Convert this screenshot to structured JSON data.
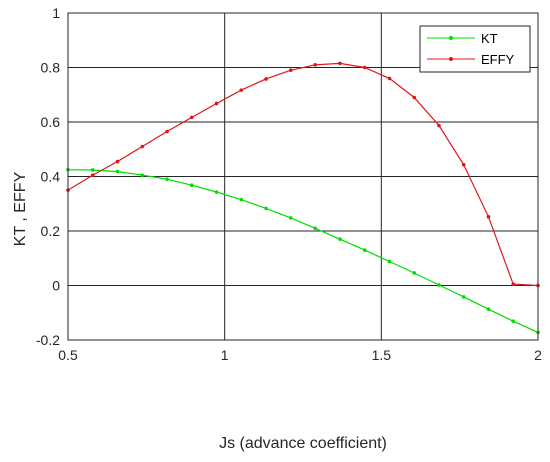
{
  "chart_data": {
    "type": "line",
    "title": "",
    "xlabel": "Js (advance coefficient)",
    "ylabel": "KT , EFFY",
    "xlim": [
      0.5,
      2
    ],
    "ylim": [
      -0.2,
      1
    ],
    "xticks": [
      0.5,
      1,
      1.5,
      2
    ],
    "xtick_labels": [
      "0.5",
      "1",
      "1.5",
      "2"
    ],
    "yticks": [
      -0.2,
      0,
      0.2,
      0.4,
      0.6,
      0.8,
      1
    ],
    "ytick_labels": [
      "-0.2",
      "0",
      "0.2",
      "0.4",
      "0.6",
      "0.8",
      "1"
    ],
    "grid": true,
    "legend_position": "top-right",
    "series": [
      {
        "name": "KT",
        "color": "#00dd00",
        "x": [
          0.5,
          0.579,
          0.658,
          0.737,
          0.816,
          0.895,
          0.974,
          1.053,
          1.132,
          1.211,
          1.289,
          1.368,
          1.447,
          1.526,
          1.605,
          1.684,
          1.763,
          1.842,
          1.921,
          2.0
        ],
        "y": [
          0.425,
          0.424,
          0.418,
          0.405,
          0.39,
          0.368,
          0.343,
          0.315,
          0.283,
          0.248,
          0.21,
          0.17,
          0.13,
          0.088,
          0.046,
          0.002,
          -0.042,
          -0.087,
          -0.131,
          -0.172
        ]
      },
      {
        "name": "EFFY",
        "color": "#e0151b",
        "x": [
          0.5,
          0.579,
          0.658,
          0.737,
          0.816,
          0.895,
          0.974,
          1.053,
          1.132,
          1.211,
          1.289,
          1.368,
          1.447,
          1.526,
          1.605,
          1.684,
          1.763,
          1.842,
          1.921,
          2.0
        ],
        "y": [
          0.35,
          0.405,
          0.455,
          0.51,
          0.565,
          0.617,
          0.668,
          0.717,
          0.758,
          0.79,
          0.81,
          0.815,
          0.8,
          0.76,
          0.69,
          0.587,
          0.443,
          0.252,
          0.005,
          0.0
        ]
      }
    ]
  }
}
